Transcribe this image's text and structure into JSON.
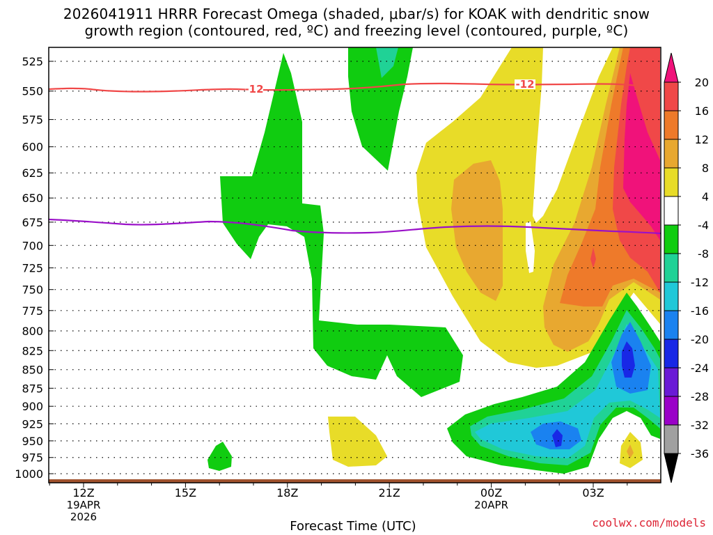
{
  "title": {
    "line1": "2026041911 HRRR Forecast Omega (shaded, μbar/s) for KOAK with dendritic snow",
    "line2": "growth region (contoured, red, ºC) and freezing level (contoured, purple, ºC)"
  },
  "footer": {
    "credit": "coolwx.com/models",
    "xlabel": "Forecast Time (UTC)"
  },
  "chart_data": {
    "type": "heatmap",
    "title": "2026041911 HRRR Forecast Omega (shaded, μbar/s) for KOAK with dendritic snow growth region (contoured, red, ºC) and freezing level (contoured, purple, ºC)",
    "xlabel": "Forecast Time (UTC)",
    "ylabel": "",
    "y_ticks": [
      525,
      550,
      575,
      600,
      625,
      650,
      675,
      700,
      725,
      750,
      775,
      800,
      825,
      850,
      875,
      900,
      925,
      950,
      975,
      1000
    ],
    "y_scale": "log-pressure (reversed)",
    "ylim": [
      1000,
      510
    ],
    "x_ticks": [
      {
        "hour": 0,
        "label": "12Z",
        "sub1": "19APR",
        "sub2": "2026"
      },
      {
        "hour": 3,
        "label": "15Z",
        "sub1": "",
        "sub2": ""
      },
      {
        "hour": 6,
        "label": "18Z",
        "sub1": "",
        "sub2": ""
      },
      {
        "hour": 9,
        "label": "21Z",
        "sub1": "",
        "sub2": ""
      },
      {
        "hour": 12,
        "label": "00Z",
        "sub1": "20APR",
        "sub2": ""
      },
      {
        "hour": 15,
        "label": "03Z",
        "sub1": "",
        "sub2": ""
      }
    ],
    "xlim_hours": [
      -1,
      17.5
    ],
    "colorbar_levels": [
      "-36",
      "-32",
      "-28",
      "-24",
      "-20",
      "-16",
      "-12",
      "-8",
      "-4",
      "4",
      "8",
      "12",
      "16",
      "20"
    ],
    "colors": {
      "below_-36": "#000000",
      "-36_-32": "#a0a0a0",
      "-32_-28": "#9a00c8",
      "-28_-24": "#6a1ad6",
      "-24_-20": "#1828e6",
      "-20_-16": "#1a82f0",
      "-16_-12": "#20c8d8",
      "-12_-8": "#20d296",
      "-8_-4": "#10cc10",
      "-4_4": "#ffffff",
      "4_8": "#e8dc28",
      "8_12": "#e8a830",
      "12_16": "#ee7a2a",
      "16_20": "#f04848",
      "above_20": "#f0127a"
    },
    "contours": {
      "dgz_isotherm": {
        "value": -12,
        "color": "#f04848",
        "label": "-12",
        "pressure_hpa_approx": 550
      },
      "freezing_level": {
        "value": 0,
        "color": "#9a10c8",
        "pressure_hpa_approx": 680
      }
    },
    "ground_color": "#a0522d"
  }
}
